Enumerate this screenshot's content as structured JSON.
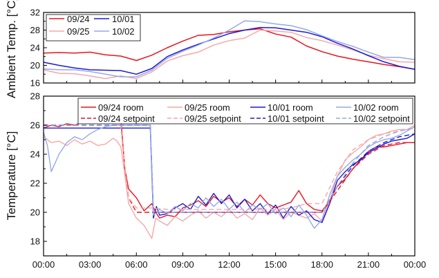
{
  "chart_data": [
    {
      "type": "line",
      "ylabel": "Ambient Temp. [°C]",
      "ylim": [
        16,
        32
      ],
      "yticks": [
        "16",
        "20",
        "24",
        "28",
        "32"
      ],
      "xlim": [
        0,
        24
      ],
      "legend_position": "top-left",
      "series": [
        {
          "name": "09/24",
          "color": "#e8141b",
          "dash": "solid",
          "x": [
            0,
            1,
            2,
            3,
            4,
            5,
            6,
            7,
            8,
            9,
            10,
            11,
            12,
            13,
            14,
            15,
            16,
            17,
            18,
            19,
            20,
            21,
            22,
            23,
            24
          ],
          "y": [
            22.8,
            22.9,
            22.8,
            23.0,
            22.4,
            22.1,
            21.1,
            22.3,
            24.0,
            25.5,
            26.8,
            27.0,
            27.6,
            28.0,
            28.3,
            27.1,
            26.4,
            24.4,
            23.1,
            22.1,
            21.4,
            20.8,
            20.2,
            19.7,
            19.1
          ]
        },
        {
          "name": "09/25",
          "color": "#f7a7a7",
          "dash": "solid",
          "x": [
            0,
            1,
            2,
            3,
            4,
            5,
            6,
            7,
            8,
            9,
            10,
            11,
            12,
            13,
            14,
            15,
            16,
            17,
            18,
            19,
            20,
            21,
            22,
            23,
            24
          ],
          "y": [
            19.0,
            18.2,
            18.1,
            17.6,
            17.0,
            17.6,
            17.0,
            18.5,
            21.0,
            22.2,
            23.0,
            24.6,
            25.6,
            26.2,
            28.0,
            27.8,
            27.5,
            26.3,
            25.6,
            24.6,
            23.5,
            22.3,
            21.5,
            20.8,
            20.7
          ]
        },
        {
          "name": "10/01",
          "color": "#1a1ad4",
          "dash": "solid",
          "x": [
            0,
            1,
            2,
            3,
            4,
            5,
            6,
            7,
            8,
            9,
            10,
            11,
            12,
            13,
            14,
            15,
            16,
            17,
            18,
            19,
            20,
            21,
            22,
            23,
            24
          ],
          "y": [
            20.7,
            20.0,
            19.4,
            19.0,
            18.9,
            18.8,
            18.0,
            19.3,
            22.0,
            23.5,
            24.8,
            26.0,
            27.2,
            28.0,
            28.6,
            28.5,
            28.0,
            27.5,
            26.5,
            25.0,
            23.7,
            22.2,
            20.8,
            19.8,
            19.1
          ]
        },
        {
          "name": "10/02",
          "color": "#94a8ec",
          "dash": "solid",
          "x": [
            0,
            1,
            2,
            3,
            4,
            5,
            6,
            7,
            8,
            9,
            10,
            11,
            12,
            13,
            14,
            15,
            16,
            17,
            18,
            19,
            20,
            21,
            22,
            23,
            24
          ],
          "y": [
            19.2,
            19.0,
            19.0,
            18.6,
            18.0,
            17.4,
            17.4,
            18.9,
            21.6,
            23.2,
            24.6,
            26.2,
            28.0,
            30.1,
            29.9,
            29.4,
            29.0,
            28.1,
            26.7,
            25.4,
            24.3,
            23.0,
            21.8,
            21.8,
            21.3
          ]
        }
      ]
    },
    {
      "type": "line",
      "ylabel": "Temperature [°C]",
      "ylim": [
        17,
        28
      ],
      "yticks": [
        "18",
        "20",
        "22",
        "24",
        "26",
        "28"
      ],
      "xlim": [
        0,
        24
      ],
      "xticks": [
        "00:00",
        "03:00",
        "06:00",
        "09:00",
        "12:00",
        "15:00",
        "18:00",
        "21:00",
        "00:00"
      ],
      "legend_position": "top-right",
      "series": [
        {
          "name": "09/24 room",
          "color": "#e8141b",
          "dash": "solid",
          "x": [
            0,
            0.5,
            1,
            1.5,
            2,
            2.5,
            3,
            3.5,
            4,
            4.5,
            4.75,
            5,
            5.25,
            5.5,
            6,
            6.5,
            7,
            7.25,
            7.5,
            8,
            8.5,
            9,
            9.5,
            10,
            10.5,
            11,
            11.5,
            12,
            12.5,
            13,
            13.5,
            14,
            14.5,
            15,
            15.5,
            16,
            16.5,
            17,
            17.5,
            18,
            18.5,
            19,
            19.5,
            20,
            20.5,
            21,
            21.5,
            22,
            22.5,
            23,
            23.5,
            24
          ],
          "y": [
            25.8,
            26.0,
            25.9,
            26.1,
            26.0,
            26.2,
            26.3,
            26.5,
            26.4,
            26.6,
            26.3,
            26.4,
            23.0,
            21.6,
            21.0,
            20.1,
            20.6,
            20.0,
            19.6,
            19.8,
            19.7,
            20.3,
            20.5,
            20.8,
            20.4,
            21.1,
            20.7,
            21.0,
            20.4,
            20.9,
            20.5,
            21.2,
            20.6,
            20.3,
            20.5,
            20.7,
            21.5,
            20.6,
            20.2,
            20.1,
            20.8,
            21.8,
            22.3,
            23.0,
            23.6,
            24.2,
            24.5,
            24.5,
            24.6,
            24.7,
            24.8,
            24.8
          ]
        },
        {
          "name": "09/25 room",
          "color": "#f7a7a7",
          "dash": "solid",
          "x": [
            0,
            0.5,
            1,
            1.5,
            2,
            2.5,
            3,
            3.5,
            4,
            4.5,
            4.75,
            5,
            5.25,
            5.5,
            6,
            6.5,
            7,
            7.25,
            7.5,
            8,
            8.5,
            9,
            9.5,
            10,
            10.5,
            11,
            11.5,
            12,
            12.5,
            13,
            13.5,
            14,
            14.5,
            15,
            15.5,
            16,
            16.5,
            17,
            17.5,
            18,
            18.5,
            19,
            19.5,
            20,
            20.5,
            21,
            21.5,
            22,
            22.5,
            23,
            23.5,
            24
          ],
          "y": [
            25.2,
            24.8,
            24.9,
            24.6,
            25.0,
            24.7,
            24.9,
            24.6,
            24.7,
            25.1,
            24.9,
            24.5,
            22.6,
            20.6,
            19.6,
            19.1,
            18.2,
            19.6,
            19.4,
            19.1,
            19.7,
            19.4,
            19.8,
            20.1,
            19.6,
            20.0,
            19.7,
            20.2,
            19.6,
            19.9,
            19.5,
            20.3,
            19.8,
            20.2,
            19.5,
            20.0,
            19.8,
            19.6,
            19.9,
            19.4,
            20.8,
            22.5,
            23.6,
            24.1,
            24.5,
            25.0,
            25.3,
            25.4,
            25.6,
            25.7,
            25.7,
            26.0
          ]
        },
        {
          "name": "10/01 room",
          "color": "#1a1ad4",
          "dash": "solid",
          "x": [
            0,
            0.5,
            1,
            1.5,
            2,
            2.5,
            3,
            3.5,
            4,
            4.5,
            5,
            5.5,
            6,
            6.5,
            6.9,
            7.1,
            7.3,
            7.5,
            8,
            8.5,
            9,
            9.5,
            10,
            10.5,
            11,
            11.5,
            12,
            12.5,
            13,
            13.5,
            14,
            14.5,
            15,
            15.5,
            16,
            16.5,
            17,
            17.5,
            18,
            18.5,
            19,
            19.5,
            20,
            20.5,
            21,
            21.5,
            22,
            22.5,
            23,
            23.5,
            24
          ],
          "y": [
            25.8,
            25.8,
            25.8,
            25.8,
            25.8,
            25.8,
            25.8,
            25.8,
            25.8,
            25.8,
            25.8,
            25.8,
            25.8,
            25.8,
            25.8,
            19.6,
            20.4,
            19.8,
            19.9,
            20.3,
            20.6,
            20.2,
            21.1,
            20.5,
            21.3,
            20.6,
            21.2,
            20.3,
            20.9,
            20.1,
            20.6,
            19.9,
            20.5,
            19.6,
            20.4,
            19.8,
            20.1,
            19.5,
            19.3,
            20.6,
            22.2,
            22.8,
            23.3,
            23.6,
            24.1,
            24.4,
            24.7,
            24.9,
            25.0,
            25.1,
            25.4
          ]
        },
        {
          "name": "10/02 room",
          "color": "#94a8ec",
          "dash": "solid",
          "x": [
            0,
            0.25,
            0.5,
            0.75,
            1,
            1.5,
            2,
            2.5,
            3,
            3.5,
            4,
            4.5,
            5,
            5.5,
            6,
            6.5,
            6.9,
            7.1,
            7.5,
            8,
            8.5,
            9,
            9.5,
            10,
            10.5,
            11,
            11.5,
            12,
            12.5,
            13,
            13.5,
            14,
            14.5,
            15,
            15.5,
            16,
            16.5,
            17,
            17.5,
            18,
            18.5,
            19,
            19.5,
            20,
            20.5,
            21,
            21.5,
            22,
            22.5,
            23,
            23.5,
            24
          ],
          "y": [
            25.5,
            24.6,
            22.8,
            23.4,
            24.0,
            24.8,
            25.2,
            25.0,
            25.4,
            25.7,
            25.9,
            26.0,
            26.0,
            26.0,
            26.0,
            26.0,
            26.0,
            19.8,
            20.2,
            19.9,
            20.4,
            20.1,
            20.6,
            20.3,
            21.0,
            20.4,
            20.9,
            20.2,
            20.7,
            20.0,
            20.5,
            20.2,
            20.6,
            19.9,
            20.3,
            19.7,
            20.5,
            19.8,
            18.9,
            19.5,
            21.2,
            22.5,
            23.1,
            23.6,
            24.0,
            24.5,
            24.8,
            25.0,
            25.1,
            25.3,
            25.6,
            25.9
          ]
        },
        {
          "name": "09/24 setpoint",
          "color": "#e8141b",
          "dash": "dash",
          "x": [
            0,
            5.0,
            5.25,
            5.5,
            6,
            7,
            8,
            9,
            10,
            11,
            12,
            13,
            14,
            15,
            16,
            17,
            17.5,
            18,
            19,
            20,
            21,
            22,
            23,
            24
          ],
          "y": [
            26.0,
            26.0,
            23.0,
            21.0,
            20.0,
            20.0,
            20.0,
            20.0,
            20.0,
            20.0,
            20.0,
            20.0,
            20.0,
            20.0,
            20.0,
            20.0,
            20.0,
            20.0,
            21.5,
            23.0,
            24.0,
            24.6,
            24.8,
            24.8
          ]
        },
        {
          "name": "09/25 setpoint",
          "color": "#f7a7a7",
          "dash": "dash",
          "x": [
            0,
            5.0,
            5.25,
            5.5,
            6,
            7,
            8,
            9,
            10,
            11,
            12,
            13,
            14,
            15,
            16,
            17,
            17.5,
            18,
            19,
            20,
            21,
            22,
            23,
            24
          ],
          "y": [
            26.0,
            26.0,
            23.0,
            21.0,
            20.3,
            20.3,
            20.2,
            20.2,
            20.2,
            20.2,
            20.2,
            20.2,
            20.2,
            20.2,
            20.3,
            20.6,
            20.6,
            20.6,
            22.8,
            24.3,
            25.0,
            25.4,
            25.6,
            25.8
          ]
        },
        {
          "name": "10/01 setpoint",
          "color": "#1a1ad4",
          "dash": "dash",
          "x": [
            0,
            6.9,
            7.1,
            8,
            9,
            10,
            11,
            12,
            13,
            14,
            15,
            16,
            17,
            18,
            19,
            20,
            21,
            22,
            23,
            24
          ],
          "y": [
            26.0,
            26.0,
            20.0,
            20.0,
            20.0,
            20.0,
            20.0,
            20.0,
            20.0,
            20.0,
            20.0,
            20.0,
            20.0,
            20.0,
            21.8,
            23.2,
            24.2,
            24.8,
            25.2,
            25.4
          ]
        },
        {
          "name": "10/02 setpoint",
          "color": "#94a8ec",
          "dash": "dash",
          "x": [
            0,
            6.9,
            7.1,
            8,
            9,
            10,
            11,
            12,
            13,
            14,
            15,
            16,
            17,
            18,
            19,
            20,
            21,
            22,
            23,
            24
          ],
          "y": [
            26.0,
            26.0,
            20.0,
            20.0,
            20.0,
            20.0,
            20.0,
            20.0,
            20.0,
            20.0,
            20.0,
            20.0,
            20.0,
            20.0,
            21.8,
            23.4,
            24.6,
            25.2,
            25.6,
            25.8
          ]
        }
      ]
    }
  ]
}
